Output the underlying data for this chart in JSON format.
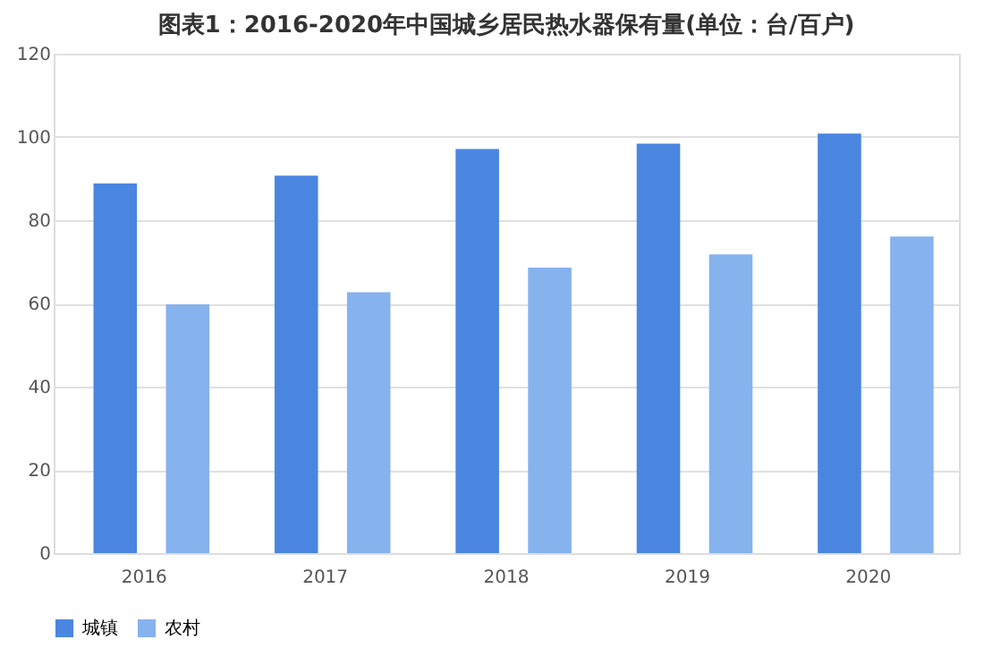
{
  "chart_data": {
    "type": "bar",
    "title": "图表1：2016-2020年中国城乡居民热水器保有量(单位：台/百户)",
    "categories": [
      "2016",
      "2017",
      "2018",
      "2019",
      "2020"
    ],
    "series": [
      {
        "name": "城镇",
        "color": "#4a86e0",
        "values": [
          88.8,
          90.7,
          97.1,
          98.4,
          100.8
        ]
      },
      {
        "name": "农村",
        "color": "#86b2ee",
        "values": [
          59.8,
          62.7,
          68.6,
          71.8,
          76.1
        ]
      }
    ],
    "ylim": [
      0,
      120
    ],
    "yticks": [
      0,
      20,
      40,
      60,
      80,
      100,
      120
    ],
    "grid": "y",
    "legend": "bottom"
  }
}
